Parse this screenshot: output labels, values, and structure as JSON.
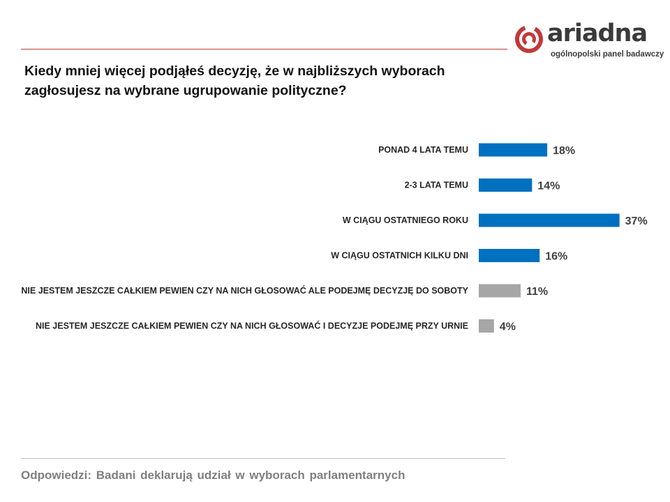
{
  "logo": {
    "wordmark": "ariadna",
    "tagline": "ogólnopolski panel badawczy"
  },
  "question": {
    "line1": "Kiedy mniej więcej podjąłeś decyzję, że w najbliższych wyborach",
    "line2": "zagłosujesz na wybrane ugrupowanie polityczne?"
  },
  "footer": {
    "text": "Odpowiedzi: Badani deklarują udział w wyborach parlamentarnych"
  },
  "colors": {
    "accent_red": "#c0393b",
    "bar_blue": "#0070c0",
    "bar_gray": "#a6a6a6"
  },
  "chart_data": {
    "type": "bar",
    "orientation": "horizontal",
    "categories": [
      "PONAD 4 LATA TEMU",
      "2-3 LATA TEMU",
      "W CIĄGU OSTATNIEGO ROKU",
      "W CIĄGU OSTATNICH KILKU DNI",
      "NIE JESTEM JESZCZE CAŁKIEM PEWIEN CZY NA NICH GŁOSOWAĆ ALE PODEJMĘ DECYZJĘ DO SOBOTY",
      "NIE JESTEM JESZCZE CAŁKIEM PEWIEN CZY NA NICH GŁOSOWAĆ I DECYZJE PODEJMĘ PRZY URNIE"
    ],
    "values": [
      18,
      14,
      37,
      16,
      11,
      4
    ],
    "value_labels": [
      "18%",
      "14%",
      "37%",
      "16%",
      "11%",
      "4%"
    ],
    "bar_colors": [
      "#0070c0",
      "#0070c0",
      "#0070c0",
      "#0070c0",
      "#a6a6a6",
      "#a6a6a6"
    ],
    "unit": "%",
    "grid": false,
    "legend": "none"
  }
}
